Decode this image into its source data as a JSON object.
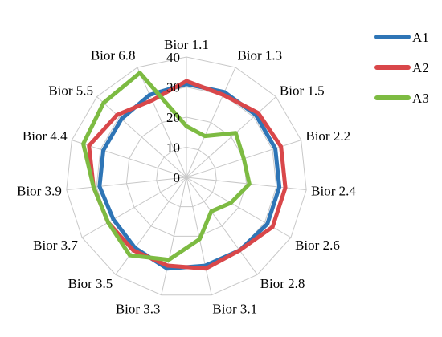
{
  "chart_data": {
    "type": "radar",
    "categories": [
      "Bior 1.1",
      "Bior 1.3",
      "Bior 1.5",
      "Bior 2.2",
      "Bior 2.4",
      "Bior 2.6",
      "Bior 2.8",
      "Bior 3.1",
      "Bior 3.3",
      "Bior 3.5",
      "Bior 3.7",
      "Bior 3.9",
      "Bior 4.4",
      "Bior 5.5",
      "Bior 6.8"
    ],
    "rlim": [
      0,
      40
    ],
    "ticks": [
      "0",
      "10",
      "20",
      "30",
      "40"
    ],
    "grid": true,
    "legend_position": "right",
    "series": [
      {
        "name": "A1",
        "color": "#2e75b6",
        "values": [
          31,
          31,
          31,
          31,
          31,
          31,
          30,
          30,
          31,
          29,
          28,
          29,
          29,
          29,
          30
        ]
      },
      {
        "name": "A2",
        "color": "#d9474a",
        "values": [
          32,
          30,
          32,
          33,
          33,
          33,
          30,
          31,
          30,
          30,
          30,
          31,
          34,
          31,
          28
        ]
      },
      {
        "name": "A3",
        "color": "#7dbb42",
        "values": [
          17,
          15,
          22,
          20,
          21,
          17,
          14,
          21,
          28,
          32,
          30,
          31,
          36,
          37,
          38
        ]
      }
    ]
  }
}
